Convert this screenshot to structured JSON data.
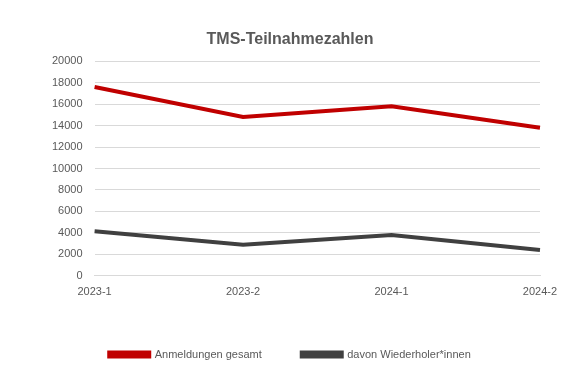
{
  "chart_data": {
    "type": "line",
    "title": "TMS-Teilnahmezahlen",
    "categories": [
      "2023-1",
      "2023-2",
      "2024-1",
      "2024-2"
    ],
    "series": [
      {
        "name": "Anmeldungen gesamt",
        "color": "#c00000",
        "values": [
          17600,
          14800,
          15800,
          13800
        ]
      },
      {
        "name": "davon Wiederholer*innen",
        "color": "#404040",
        "values": [
          4150,
          2900,
          3800,
          2400
        ]
      }
    ],
    "ylim": [
      0,
      20000
    ],
    "yticks": [
      0,
      2000,
      4000,
      6000,
      8000,
      10000,
      12000,
      14000,
      16000,
      18000,
      20000
    ],
    "grid": true,
    "legend": "bottom",
    "marker": "none",
    "line_style": "solid"
  }
}
